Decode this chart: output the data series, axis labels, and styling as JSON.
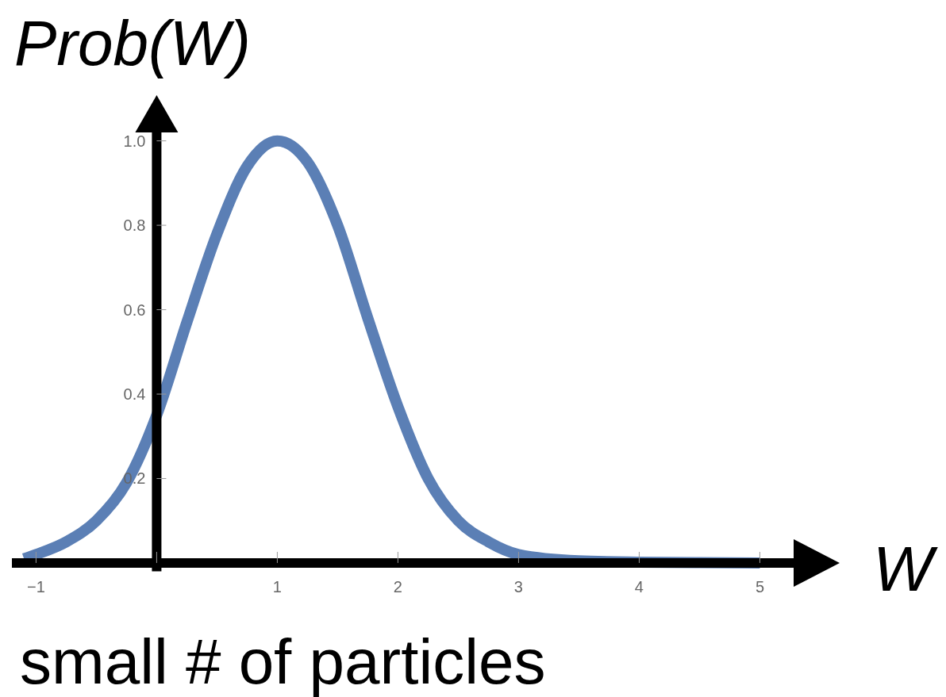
{
  "chart_data": {
    "type": "line",
    "ylabel": "Prob(W)",
    "xlabel": "W",
    "annotations": [
      "small # of particles"
    ],
    "xlim": [
      -1.2,
      5.28
    ],
    "ylim": [
      -0.02,
      1.02
    ],
    "xticks": [
      -1,
      {
        "value": 0,
        "label": null
      },
      1,
      2,
      3,
      4,
      5
    ],
    "yticks": [
      0.2,
      0.4,
      0.6,
      0.8,
      {
        "value": 1,
        "label": "1.0"
      }
    ],
    "grid": false,
    "marker": "none",
    "line_style": "solid",
    "series": [
      {
        "color": "#5b7fb5",
        "x": [
          -1.1,
          -1,
          -0.75,
          -0.5,
          -0.25,
          0,
          0.25,
          0.5,
          0.75,
          1,
          1.25,
          1.5,
          1.75,
          2,
          2.25,
          2.5,
          2.75,
          3,
          3.5,
          4,
          4.5,
          5
        ],
        "values": [
          0.01,
          0.02,
          0.05,
          0.1,
          0.19,
          0.35,
          0.57,
          0.78,
          0.94,
          1.0,
          0.95,
          0.8,
          0.58,
          0.37,
          0.2,
          0.1,
          0.05,
          0.02,
          0.005,
          0.002,
          0.001,
          0
        ]
      }
    ]
  }
}
